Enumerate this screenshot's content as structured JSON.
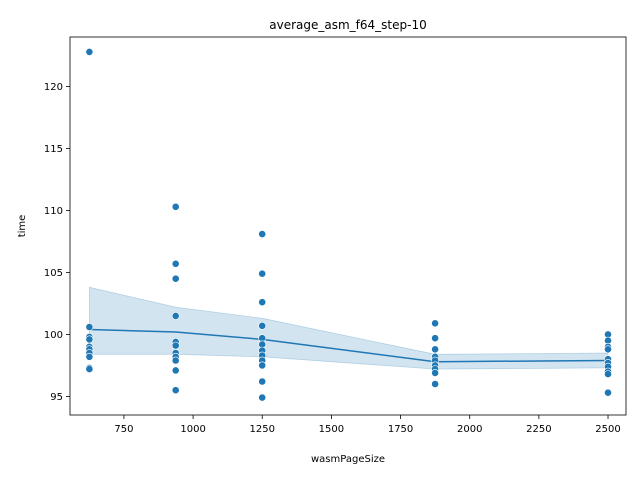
{
  "chart_data": {
    "type": "scatter",
    "title": "average_asm_f64_step-10",
    "xlabel": "wasmPageSize",
    "ylabel": "time",
    "xlim": [
      555,
      2565
    ],
    "ylim": [
      93.5,
      124.0
    ],
    "x_ticks": [
      750,
      1000,
      1250,
      1500,
      1750,
      2000,
      2250,
      2500
    ],
    "y_ticks": [
      95,
      100,
      105,
      110,
      115,
      120
    ],
    "grid": false,
    "colors": {
      "point": "#1f77b4",
      "line": "#1f77b4",
      "band": "#1f77b4"
    },
    "points": [
      {
        "x": 625,
        "y": 122.8
      },
      {
        "x": 625,
        "y": 100.6
      },
      {
        "x": 625,
        "y": 99.8
      },
      {
        "x": 625,
        "y": 99.6
      },
      {
        "x": 625,
        "y": 99.0
      },
      {
        "x": 625,
        "y": 98.8
      },
      {
        "x": 625,
        "y": 98.5
      },
      {
        "x": 625,
        "y": 98.2
      },
      {
        "x": 625,
        "y": 97.3
      },
      {
        "x": 625,
        "y": 97.2
      },
      {
        "x": 937,
        "y": 110.3
      },
      {
        "x": 937,
        "y": 105.7
      },
      {
        "x": 937,
        "y": 104.5
      },
      {
        "x": 937,
        "y": 101.5
      },
      {
        "x": 937,
        "y": 99.4
      },
      {
        "x": 937,
        "y": 99.1
      },
      {
        "x": 937,
        "y": 98.5
      },
      {
        "x": 937,
        "y": 98.2
      },
      {
        "x": 937,
        "y": 97.9
      },
      {
        "x": 937,
        "y": 97.1
      },
      {
        "x": 937,
        "y": 95.5
      },
      {
        "x": 1250,
        "y": 108.1
      },
      {
        "x": 1250,
        "y": 104.9
      },
      {
        "x": 1250,
        "y": 102.6
      },
      {
        "x": 1250,
        "y": 100.7
      },
      {
        "x": 1250,
        "y": 99.7
      },
      {
        "x": 1250,
        "y": 99.2
      },
      {
        "x": 1250,
        "y": 98.7
      },
      {
        "x": 1250,
        "y": 98.3
      },
      {
        "x": 1250,
        "y": 97.9
      },
      {
        "x": 1250,
        "y": 97.5
      },
      {
        "x": 1250,
        "y": 96.2
      },
      {
        "x": 1250,
        "y": 94.9
      },
      {
        "x": 1875,
        "y": 100.9
      },
      {
        "x": 1875,
        "y": 99.7
      },
      {
        "x": 1875,
        "y": 98.8
      },
      {
        "x": 1875,
        "y": 98.2
      },
      {
        "x": 1875,
        "y": 97.9
      },
      {
        "x": 1875,
        "y": 97.5
      },
      {
        "x": 1875,
        "y": 97.2
      },
      {
        "x": 1875,
        "y": 96.9
      },
      {
        "x": 1875,
        "y": 96.0
      },
      {
        "x": 2500,
        "y": 100.0
      },
      {
        "x": 2500,
        "y": 99.5
      },
      {
        "x": 2500,
        "y": 99.0
      },
      {
        "x": 2500,
        "y": 98.8
      },
      {
        "x": 2500,
        "y": 98.0
      },
      {
        "x": 2500,
        "y": 97.7
      },
      {
        "x": 2500,
        "y": 97.4
      },
      {
        "x": 2500,
        "y": 97.0
      },
      {
        "x": 2500,
        "y": 96.8
      },
      {
        "x": 2500,
        "y": 95.3
      }
    ],
    "mean_line": {
      "x": [
        625,
        937,
        1250,
        1875,
        2500
      ],
      "y": [
        100.4,
        100.2,
        99.6,
        97.8,
        97.9
      ]
    },
    "ci_band": {
      "x": [
        625,
        937,
        1250,
        1875,
        2500
      ],
      "lower": [
        98.4,
        98.4,
        98.2,
        97.2,
        97.3
      ],
      "upper": [
        103.8,
        102.2,
        101.3,
        98.4,
        98.5
      ]
    }
  }
}
